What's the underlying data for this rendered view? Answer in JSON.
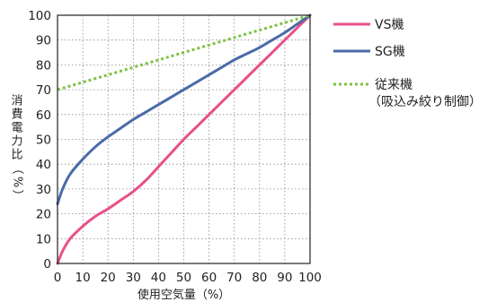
{
  "chart_data": {
    "type": "line",
    "title": "",
    "xlabel": "使用空気量（%）",
    "ylabel": "消費電力比（%）",
    "xlim": [
      0,
      100
    ],
    "ylim": [
      0,
      100
    ],
    "xticks": [
      0,
      10,
      20,
      30,
      40,
      50,
      60,
      70,
      80,
      90,
      100
    ],
    "yticks": [
      0,
      10,
      20,
      30,
      40,
      50,
      60,
      70,
      80,
      90,
      100
    ],
    "grid": true,
    "legend_position": "right",
    "series": [
      {
        "name": "VS機",
        "color": "#e8508a",
        "style": "solid",
        "x": [
          0,
          2,
          5,
          10,
          15,
          20,
          25,
          30,
          35,
          40,
          45,
          50,
          55,
          60,
          65,
          70,
          75,
          80,
          85,
          90,
          95,
          100
        ],
        "y": [
          0,
          5,
          10,
          15,
          19,
          22,
          25.5,
          29,
          33.5,
          39,
          44.5,
          50,
          55,
          60,
          65,
          70,
          75,
          80,
          85,
          90,
          95,
          100
        ]
      },
      {
        "name": "SG機",
        "color": "#4a6aa8",
        "style": "solid",
        "x": [
          0,
          2,
          5,
          10,
          15,
          20,
          25,
          30,
          35,
          40,
          45,
          50,
          55,
          60,
          65,
          70,
          75,
          80,
          85,
          90,
          95,
          100
        ],
        "y": [
          24,
          30,
          36,
          42,
          47,
          51,
          54.5,
          58,
          61,
          64,
          67,
          70,
          73,
          76,
          79,
          82,
          84.5,
          87,
          90,
          93,
          96.5,
          100
        ]
      },
      {
        "name": "従来機",
        "name_line2": "（吸込み絞り制御）",
        "color": "#7dc242",
        "style": "dotted",
        "x": [
          0,
          100
        ],
        "y": [
          70,
          100
        ]
      }
    ]
  }
}
